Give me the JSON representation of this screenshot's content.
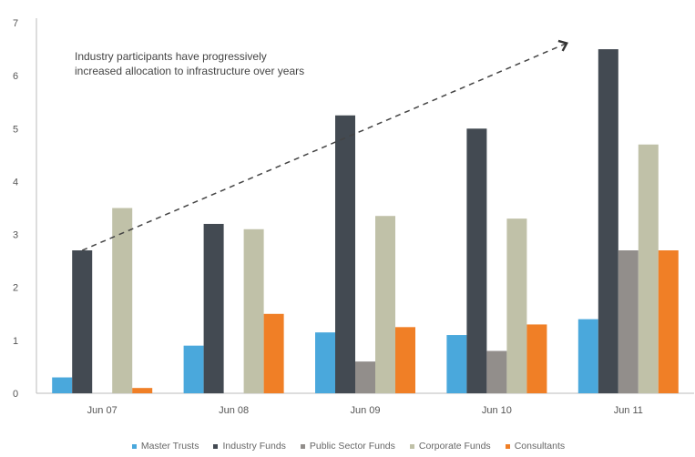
{
  "chart_data": {
    "type": "bar",
    "title": "",
    "xlabel": "",
    "ylabel": "",
    "ylim": [
      0,
      7
    ],
    "yticks": [
      0,
      1,
      2,
      3,
      4,
      5,
      6,
      7
    ],
    "grid": false,
    "legend_position": "bottom",
    "categories": [
      "Jun 07",
      "Jun 08",
      "Jun 09",
      "Jun 10",
      "Jun 11"
    ],
    "series": [
      {
        "name": "Master Trusts",
        "color": "#4aa8dc",
        "values": [
          0.3,
          0.9,
          1.15,
          1.1,
          1.4
        ]
      },
      {
        "name": "Industry Funds",
        "color": "#434a52",
        "values": [
          2.7,
          3.2,
          5.25,
          5.0,
          6.5
        ]
      },
      {
        "name": "Public Sector Funds",
        "color": "#928e8b",
        "values": [
          0,
          0,
          0.6,
          0.8,
          2.7
        ]
      },
      {
        "name": "Corporate Funds",
        "color": "#c0c1a8",
        "values": [
          3.5,
          3.1,
          3.35,
          3.3,
          4.7
        ]
      },
      {
        "name": "Consultants",
        "color": "#f07f26",
        "values": [
          0.1,
          1.5,
          1.25,
          1.3,
          2.7
        ]
      }
    ],
    "annotation": {
      "lines": [
        "Industry participants have progressively",
        "increased allocation to infrastructure over years"
      ],
      "trend_arrow": {
        "from": {
          "category": "Jun 07",
          "value": 2.7
        },
        "to": {
          "category": "Jun 11",
          "value": 6.5
        }
      }
    }
  }
}
